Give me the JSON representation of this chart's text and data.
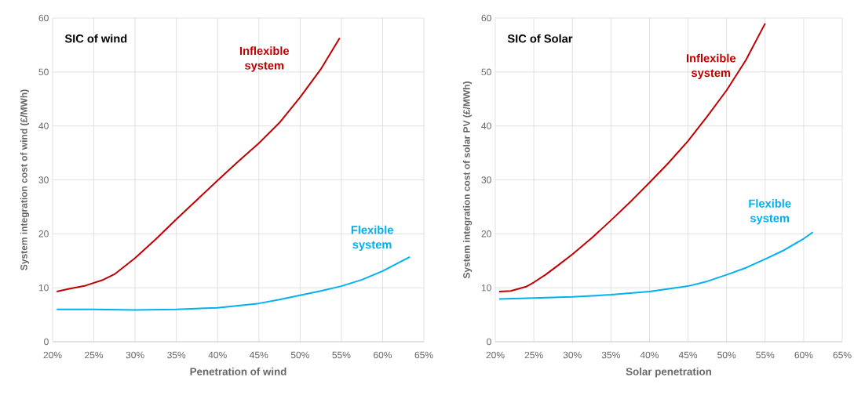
{
  "chart_data": [
    {
      "type": "line",
      "title": "SIC of wind",
      "xlabel": "Penetration of wind",
      "ylabel": "System integration cost of wind (£/MWh)",
      "xlim": [
        20,
        65
      ],
      "ylim": [
        0,
        60
      ],
      "grid": true,
      "xticks": [
        {
          "value": 20,
          "label": "20%"
        },
        {
          "value": 25,
          "label": "25%"
        },
        {
          "value": 30,
          "label": "30%"
        },
        {
          "value": 35,
          "label": "35%"
        },
        {
          "value": 40,
          "label": "40%"
        },
        {
          "value": 45,
          "label": "45%"
        },
        {
          "value": 50,
          "label": "50%"
        },
        {
          "value": 55,
          "label": "55%"
        },
        {
          "value": 60,
          "label": "60%"
        },
        {
          "value": 65,
          "label": "65%"
        }
      ],
      "yticks": [
        0,
        10,
        20,
        30,
        40,
        50,
        60
      ],
      "series": [
        {
          "name": "Inflexible system",
          "color": "#c00000",
          "x": [
            20.5,
            22,
            24,
            26,
            27.5,
            30,
            32.5,
            35,
            37.5,
            40,
            42.5,
            45,
            47.5,
            50,
            52.5,
            54.8
          ],
          "values": [
            9.3,
            9.8,
            10.4,
            11.4,
            12.5,
            15.5,
            19,
            22.7,
            26.3,
            29.9,
            33.4,
            36.8,
            40.6,
            45.3,
            50.5,
            56.3
          ]
        },
        {
          "name": "Flexible system",
          "color": "#00b0f0",
          "x": [
            20.5,
            25,
            30,
            35,
            40,
            42.5,
            45,
            47.5,
            50,
            52.5,
            55,
            57.5,
            60,
            63.3
          ],
          "values": [
            6,
            6,
            5.9,
            6,
            6.3,
            6.7,
            7.1,
            7.8,
            8.6,
            9.4,
            10.3,
            11.5,
            13.1,
            15.7
          ]
        }
      ]
    },
    {
      "type": "line",
      "title": "SIC of Solar",
      "xlabel": "Solar penetration",
      "ylabel": "System integration cost of solar PV (£/MWh)",
      "xlim": [
        20,
        65
      ],
      "ylim": [
        0,
        60
      ],
      "grid": true,
      "xticks": [
        {
          "value": 20,
          "label": "20%"
        },
        {
          "value": 25,
          "label": "25%"
        },
        {
          "value": 30,
          "label": "30%"
        },
        {
          "value": 35,
          "label": "35%"
        },
        {
          "value": 40,
          "label": "40%"
        },
        {
          "value": 45,
          "label": "45%"
        },
        {
          "value": 50,
          "label": "50%"
        },
        {
          "value": 55,
          "label": "55%"
        },
        {
          "value": 60,
          "label": "60%"
        },
        {
          "value": 65,
          "label": "65%"
        }
      ],
      "yticks": [
        0,
        10,
        20,
        30,
        40,
        50,
        60
      ],
      "series": [
        {
          "name": "Inflexible system",
          "color": "#c00000",
          "x": [
            20.5,
            22,
            24,
            25,
            26.5,
            28,
            30,
            32.5,
            35,
            37.5,
            40,
            42.5,
            45,
            47.5,
            50,
            52.5,
            55
          ],
          "values": [
            9.3,
            9.4,
            10.2,
            11,
            12.4,
            14,
            16.2,
            19.2,
            22.5,
            25.9,
            29.5,
            33.2,
            37.2,
            41.8,
            46.6,
            52.2,
            59
          ]
        },
        {
          "name": "Flexible system",
          "color": "#00b0f0",
          "x": [
            20.5,
            25,
            30,
            35,
            40,
            45,
            47.5,
            50,
            52.5,
            55,
            57.5,
            60,
            61.2
          ],
          "values": [
            7.9,
            8.1,
            8.3,
            8.7,
            9.3,
            10.3,
            11.2,
            12.4,
            13.7,
            15.3,
            17,
            19.1,
            20.3
          ]
        }
      ]
    }
  ]
}
